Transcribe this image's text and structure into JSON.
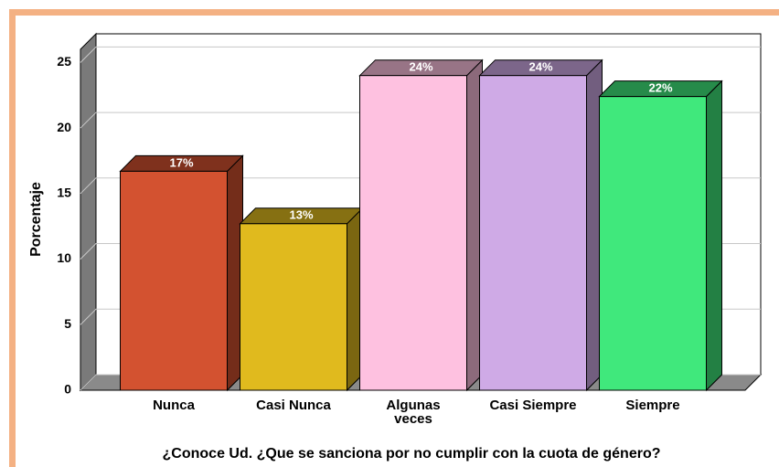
{
  "chart_data": {
    "type": "bar3d",
    "title": "¿Conoce Ud. ¿Que se sanciona por no cumplir con la cuota de género?",
    "y_label": "Porcentaje",
    "categories": [
      "Nunca",
      "Casi Nunca",
      "Algunas veces",
      "Casi Siempre",
      "Siempre"
    ],
    "series": [
      {
        "colors": [
          "#d35230",
          "#e0ba1e",
          "#fec1e0",
          "#cfaae6",
          "#40e87c"
        ],
        "values": [
          16.7,
          12.7,
          24.0,
          24.0,
          22.4
        ],
        "value_labels": [
          "17%",
          "13%",
          "24%",
          "24%",
          "22%"
        ]
      }
    ],
    "ylim": [
      0,
      26
    ],
    "yticks": [
      0,
      5,
      10,
      15,
      20,
      25
    ],
    "grid": true
  }
}
